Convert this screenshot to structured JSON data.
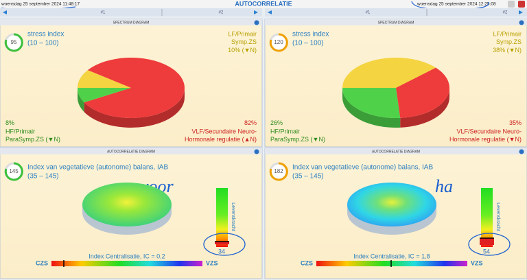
{
  "header": {
    "date_left": "woensdag 25 september 2024 11:48:17",
    "title": "AUTOCORRELATIE",
    "date_right": "woensdag 25 september 2024 12:25:08"
  },
  "tabs": [
    [
      "#1",
      "#2"
    ],
    [
      "#1",
      "#2"
    ]
  ],
  "spectrum_panels": [
    {
      "heading": "SPECTRUM DIAGRAM",
      "badge": "95",
      "title": "stress index",
      "range": "(10 – 100)",
      "slices": [
        {
          "lines": [
            "LF/Primair",
            "Symp.ZS"
          ],
          "value": 10,
          "label": "10%",
          "trend": "(▼N)",
          "color": "#f5d442",
          "text_color": "#b8a000"
        },
        {
          "lines": [
            "VLF/Secundaire Neuro-",
            "Hormonale regulatie"
          ],
          "value": 82,
          "label": "82%",
          "trend": "(▲N)",
          "color": "#ee3b3b",
          "text_color": "#cc2222"
        },
        {
          "lines": [
            "HF/Primair",
            "ParaSymp.ZS"
          ],
          "value": 8,
          "label": "8%",
          "trend": "(▼N)",
          "color": "#4fd14a",
          "text_color": "#2e8b1e"
        }
      ]
    },
    {
      "heading": "SPECTRUM DIAGRAM",
      "badge": "120",
      "title": "stress index",
      "range": "(10 – 100)",
      "slices": [
        {
          "lines": [
            "LF/Primair",
            "Symp.ZS"
          ],
          "value": 38,
          "label": "38%",
          "trend": "(▼N)",
          "color": "#f5d442",
          "text_color": "#b8a000"
        },
        {
          "lines": [
            "VLF/Secundaire Neuro-",
            "Hormonale regulatie"
          ],
          "value": 35,
          "label": "35%",
          "trend": "(▼N)",
          "color": "#ee3b3b",
          "text_color": "#cc2222"
        },
        {
          "lines": [
            "HF/Primair",
            "ParaSymp.ZS"
          ],
          "value": 26,
          "label": "26%",
          "trend": "(▼N)",
          "color": "#4fd14a",
          "text_color": "#2e8b1e"
        }
      ]
    }
  ],
  "autocorrelation_panels": [
    {
      "heading": "AUTOCORRELATIE DIAGRAM",
      "badge": "145",
      "title": "Index van vegetatieve (autonome) balans, IAB",
      "range": "(35 – 145)",
      "note": "voor",
      "bar_label": "Levenskracht",
      "bar_value": "34",
      "ic": "Index Centralisatie, IC = 0,2",
      "left": "CZS",
      "right": "VZS"
    },
    {
      "heading": "AUTOCORRELATIE DIAGRAM",
      "badge": "182",
      "title": "Index van vegetatieve (autonome) balans, IAB",
      "range": "(35 – 145)",
      "note": "ha",
      "bar_label": "Levenskracht",
      "bar_value": "54",
      "ic": "Index Centralisatie, IC = 1,8",
      "left": "CZS",
      "right": "VZS"
    }
  ]
}
